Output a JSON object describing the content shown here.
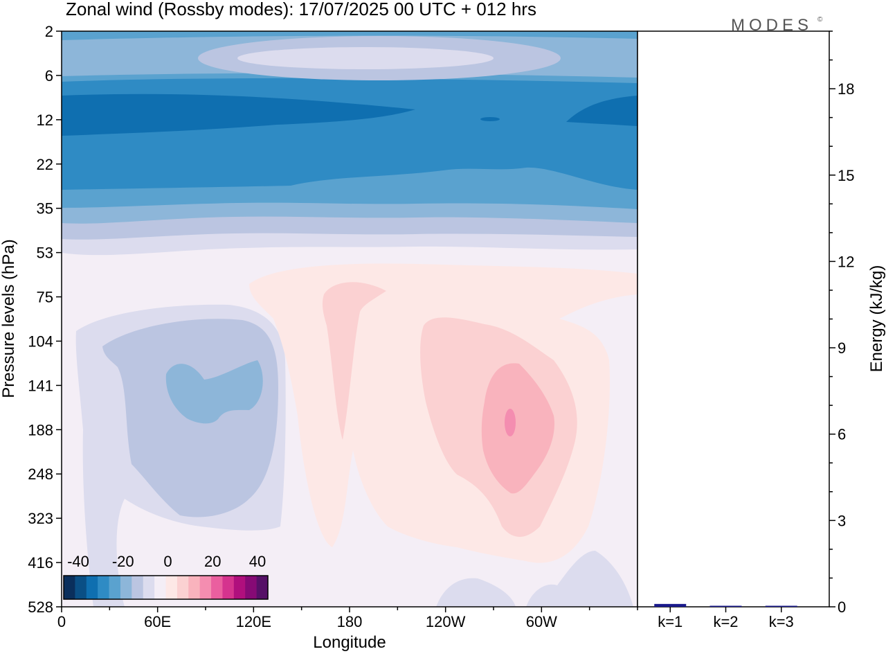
{
  "title": "Zonal wind (Rossby modes):  17/07/2025  00 UTC  + 012 hrs",
  "logo": "MODES",
  "logo_mark": "©",
  "contour_panel": {
    "xlabel": "Longitude",
    "ylabel": "Pressure levels (hPa)",
    "x_ticks": [
      "0",
      "60E",
      "120E",
      "180",
      "120W",
      "60W"
    ],
    "x_tick_positions_deg": [
      0,
      60,
      120,
      180,
      240,
      300
    ],
    "x_range_deg": [
      0,
      360
    ],
    "y_ticks": [
      "2",
      "6",
      "12",
      "22",
      "35",
      "53",
      "75",
      "104",
      "141",
      "188",
      "248",
      "323",
      "416",
      "528"
    ],
    "colorbar": {
      "labels": [
        "-40",
        "-20",
        "0",
        "20",
        "40"
      ],
      "colors": [
        "#0a2f5c",
        "#0a4f85",
        "#0f6fb0",
        "#2f8bc4",
        "#5aa2cf",
        "#8db6d9",
        "#bbc5e1",
        "#dcdcee",
        "#f4eef6",
        "#fde8e6",
        "#fbd1d2",
        "#f9b3bd",
        "#f48db0",
        "#ea5f9f",
        "#d5338e",
        "#b00f7d",
        "#860a75",
        "#561067"
      ]
    },
    "field_colors": {
      "strong_neg": "#0f6fb0",
      "neg_2": "#2f8bc4",
      "neg_3": "#5aa2cf",
      "neg_4": "#8db6d9",
      "neg_5": "#bbc5e1",
      "neg_6": "#dcdcee",
      "neutral": "#f4eef6",
      "pos_1": "#fde8e6",
      "pos_2": "#fbd1d2",
      "pos_3": "#f9b3bd",
      "pos_4": "#f48db0"
    }
  },
  "energy_panel": {
    "ylabel": "Energy (kJ/kg)",
    "ylim": [
      0,
      20
    ],
    "y_ticks": [
      "0",
      "3",
      "6",
      "9",
      "12",
      "15",
      "18"
    ],
    "y_tick_values": [
      0,
      3,
      6,
      9,
      12,
      15,
      18
    ],
    "bar_color": "#1a1a8c"
  },
  "chart_data": {
    "type": "bar",
    "categories": [
      "k=1",
      "k=2",
      "k=3"
    ],
    "values": [
      0.1,
      0.03,
      0.03
    ],
    "ylabel": "Energy (kJ/kg)",
    "ylim": [
      0,
      20
    ]
  }
}
